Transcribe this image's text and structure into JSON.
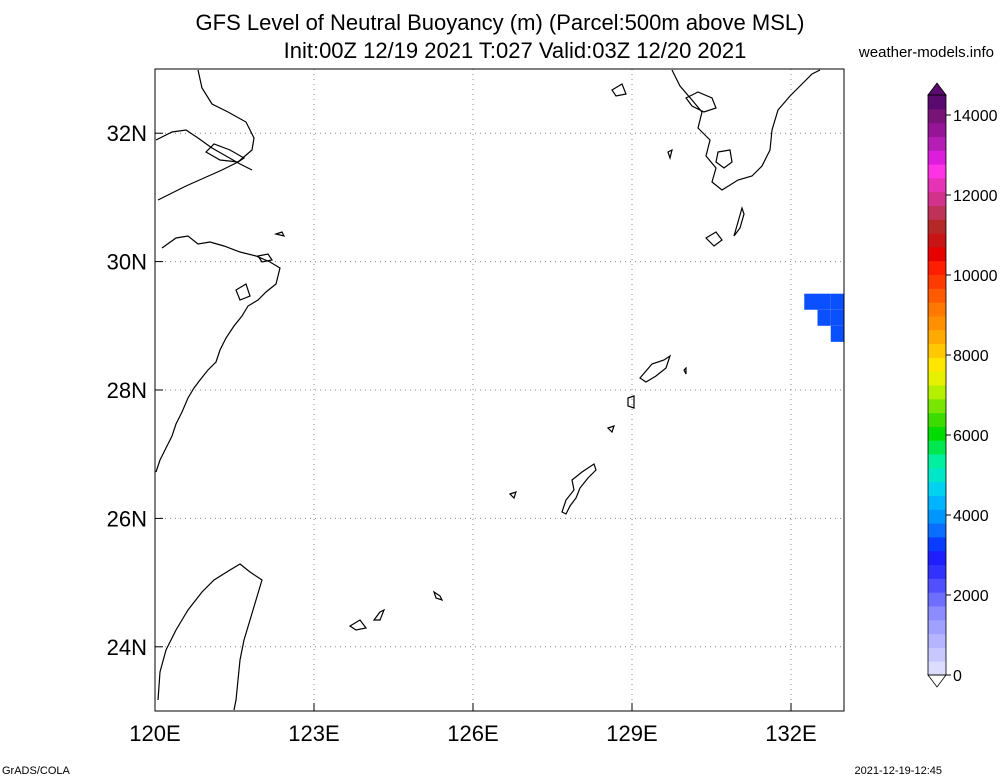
{
  "header": {
    "title_line1": "GFS Level of Neutral Buoyancy (m) (Parcel:500m above MSL)",
    "title_line2": "Init:00Z 12/19 2021 T:027 Valid:03Z 12/20 2021",
    "site": "weather-models.info"
  },
  "footer": {
    "left": "GrADS/COLA",
    "right": "2021-12-19-12:45"
  },
  "map": {
    "lon_range": [
      120,
      133
    ],
    "lat_range": [
      23,
      33
    ],
    "lon_ticks": [
      {
        "value": 120,
        "label": "120E"
      },
      {
        "value": 123,
        "label": "123E"
      },
      {
        "value": 126,
        "label": "126E"
      },
      {
        "value": 129,
        "label": "129E"
      },
      {
        "value": 132,
        "label": "132E"
      }
    ],
    "lat_ticks": [
      {
        "value": 24,
        "label": "24N"
      },
      {
        "value": 26,
        "label": "26N"
      },
      {
        "value": 28,
        "label": "28N"
      },
      {
        "value": 30,
        "label": "30N"
      },
      {
        "value": 32,
        "label": "32N"
      }
    ],
    "grid": "dotted",
    "shaded_cells": [
      {
        "lon": 132.25,
        "lat": 29.25,
        "value": 1750,
        "color": "#0a50ff"
      },
      {
        "lon": 132.5,
        "lat": 29.25,
        "value": 1750,
        "color": "#0a50ff"
      },
      {
        "lon": 132.75,
        "lat": 29.25,
        "value": 1750,
        "color": "#0a50ff"
      },
      {
        "lon": 132.5,
        "lat": 29.0,
        "value": 1750,
        "color": "#0a50ff"
      },
      {
        "lon": 132.75,
        "lat": 29.0,
        "value": 1750,
        "color": "#0a50ff"
      },
      {
        "lon": 132.75,
        "lat": 28.75,
        "value": 1750,
        "color": "#0a50ff"
      }
    ]
  },
  "colorbar": {
    "labels": [
      {
        "value": 0,
        "label": "0"
      },
      {
        "value": 2000,
        "label": "2000"
      },
      {
        "value": 4000,
        "label": "4000"
      },
      {
        "value": 6000,
        "label": "6000"
      },
      {
        "value": 8000,
        "label": "8000"
      },
      {
        "value": 10000,
        "label": "10000"
      },
      {
        "value": 12000,
        "label": "12000"
      },
      {
        "value": 14000,
        "label": "14000"
      }
    ],
    "colors": [
      "#dcdcff",
      "#c8c8ff",
      "#b4b4ff",
      "#a0a0ff",
      "#8c8cff",
      "#6e6eff",
      "#5050ff",
      "#3232ff",
      "#1e1eff",
      "#0a3cff",
      "#0a6eff",
      "#0096ff",
      "#00b4ff",
      "#00d2f0",
      "#00e6c8",
      "#00f0a0",
      "#00e650",
      "#00dc00",
      "#3cdc00",
      "#78e600",
      "#b4f000",
      "#e6f000",
      "#ffe600",
      "#ffc800",
      "#ffaa00",
      "#ff9100",
      "#ff7800",
      "#ff5a00",
      "#ff3c00",
      "#ff1e00",
      "#e60000",
      "#c81414",
      "#b42828",
      "#be325a",
      "#d2328c",
      "#e632b4",
      "#ff32e6",
      "#dc1edc",
      "#b41eb4",
      "#961496",
      "#781478",
      "#5a0a6e"
    ],
    "min": 0,
    "max": 14500,
    "top_arrow_color": "#5a0a6e",
    "bottom_arrow_color": "#ffffff"
  },
  "icons": {
    "north_arrow": "none"
  }
}
